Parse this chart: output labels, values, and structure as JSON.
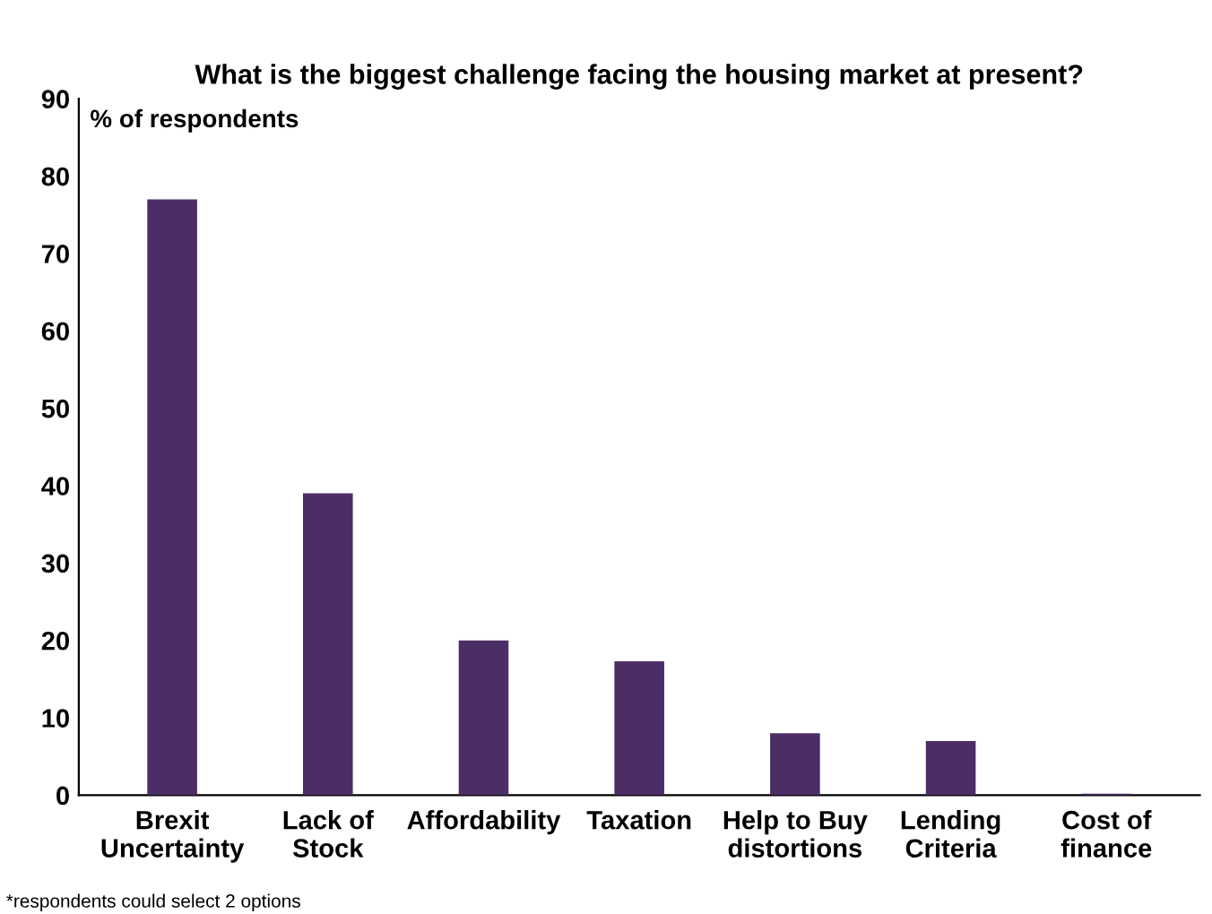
{
  "chart_data": {
    "type": "bar",
    "title": "What is the biggest challenge facing the housing market at present?",
    "ylabel": "% of respondents",
    "categories": [
      "Brexit\nUncertainty",
      "Lack of\nStock",
      "Affordability",
      "Taxation",
      "Help to Buy\ndistortions",
      "Lending\nCriteria",
      "Cost of\nfinance"
    ],
    "values": [
      77,
      39,
      20,
      17.3,
      8,
      7,
      0.2
    ],
    "color": "#4b2e66",
    "ylim": [
      0,
      90
    ],
    "yticks": [
      0,
      10,
      20,
      30,
      40,
      50,
      60,
      70,
      80,
      90
    ],
    "grid": false,
    "legend": false,
    "annotations": [
      "*respondents could select 2 options"
    ]
  }
}
